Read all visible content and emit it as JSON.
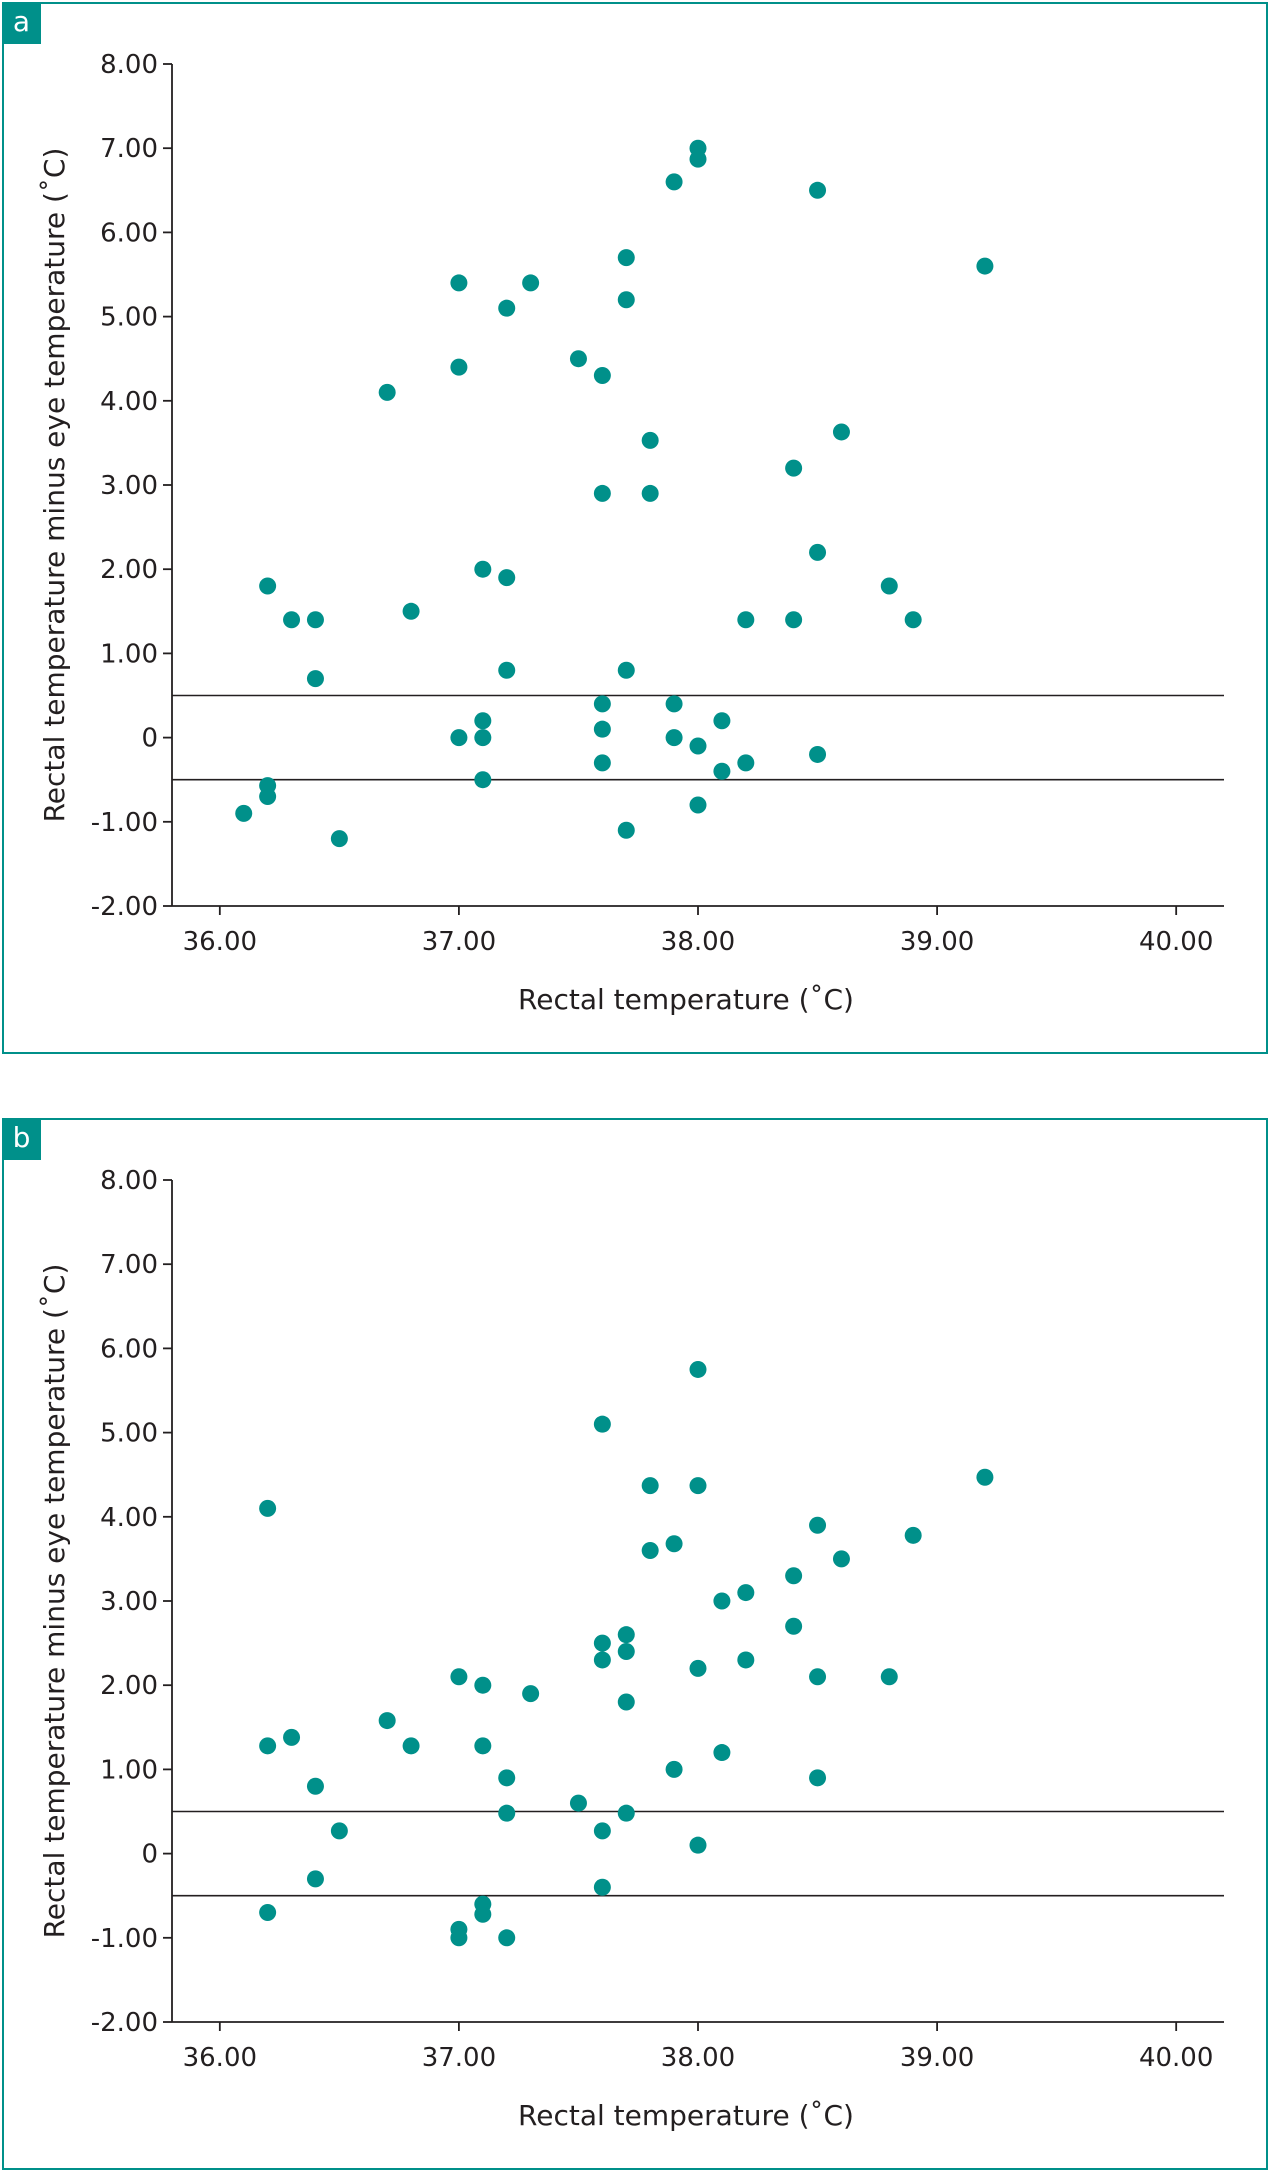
{
  "chart_data": [
    {
      "panel_label": "a",
      "type": "scatter",
      "xlabel": "Rectal temperature (˚C)",
      "ylabel": "Rectal temperature minus eye temperature (˚C)",
      "xlim": [
        35.8,
        40.2
      ],
      "ylim": [
        -2.0,
        8.0
      ],
      "x_ticks": [
        "36.00",
        "37.00",
        "38.00",
        "39.00",
        "40.00"
      ],
      "y_ticks": [
        "8.00",
        "7.00",
        "6.00",
        "5.00",
        "4.00",
        "3.00",
        "2.00",
        "1.00",
        "0",
        "-1.00",
        "-2.00"
      ],
      "reference_lines": [
        0.5,
        -0.5
      ],
      "color": "#00908a",
      "points": [
        [
          36.1,
          -0.9
        ],
        [
          36.2,
          1.8
        ],
        [
          36.2,
          -0.57
        ],
        [
          36.2,
          -0.7
        ],
        [
          36.3,
          1.4
        ],
        [
          36.4,
          1.4
        ],
        [
          36.4,
          0.7
        ],
        [
          36.5,
          -1.2
        ],
        [
          36.7,
          4.1
        ],
        [
          36.8,
          1.5
        ],
        [
          37.0,
          5.4
        ],
        [
          37.0,
          4.4
        ],
        [
          37.0,
          0.0
        ],
        [
          37.1,
          2.0
        ],
        [
          37.1,
          0.2
        ],
        [
          37.1,
          0.0
        ],
        [
          37.1,
          -0.5
        ],
        [
          37.2,
          5.1
        ],
        [
          37.2,
          1.9
        ],
        [
          37.2,
          0.8
        ],
        [
          37.3,
          5.4
        ],
        [
          37.5,
          4.5
        ],
        [
          37.6,
          4.3
        ],
        [
          37.6,
          2.9
        ],
        [
          37.6,
          0.4
        ],
        [
          37.6,
          0.1
        ],
        [
          37.6,
          -0.3
        ],
        [
          37.7,
          5.7
        ],
        [
          37.7,
          5.2
        ],
        [
          37.7,
          0.8
        ],
        [
          37.7,
          -1.1
        ],
        [
          37.8,
          3.53
        ],
        [
          37.8,
          2.9
        ],
        [
          37.9,
          6.6
        ],
        [
          37.9,
          0.4
        ],
        [
          37.9,
          0.0
        ],
        [
          38.0,
          7.0
        ],
        [
          38.0,
          6.87
        ],
        [
          38.0,
          -0.1
        ],
        [
          38.0,
          -0.8
        ],
        [
          38.1,
          0.2
        ],
        [
          38.1,
          -0.4
        ],
        [
          38.2,
          1.4
        ],
        [
          38.2,
          -0.3
        ],
        [
          38.4,
          3.2
        ],
        [
          38.4,
          1.4
        ],
        [
          38.5,
          6.5
        ],
        [
          38.5,
          2.2
        ],
        [
          38.5,
          -0.2
        ],
        [
          38.6,
          3.63
        ],
        [
          38.8,
          1.8
        ],
        [
          38.9,
          1.4
        ],
        [
          39.2,
          5.6
        ]
      ]
    },
    {
      "panel_label": "b",
      "type": "scatter",
      "xlabel": "Rectal temperature (˚C)",
      "ylabel": "Rectal temperature minus eye temperature (˚C)",
      "xlim": [
        35.8,
        40.2
      ],
      "ylim": [
        -2.0,
        8.0
      ],
      "x_ticks": [
        "36.00",
        "37.00",
        "38.00",
        "39.00",
        "40.00"
      ],
      "y_ticks": [
        "8.00",
        "7.00",
        "6.00",
        "5.00",
        "4.00",
        "3.00",
        "2.00",
        "1.00",
        "0",
        "-1.00",
        "-2.00"
      ],
      "reference_lines": [
        0.5,
        -0.5
      ],
      "color": "#00908a",
      "points": [
        [
          36.2,
          4.1
        ],
        [
          36.2,
          1.28
        ],
        [
          36.2,
          -0.7
        ],
        [
          36.3,
          1.38
        ],
        [
          36.4,
          0.8
        ],
        [
          36.4,
          -0.3
        ],
        [
          36.5,
          0.27
        ],
        [
          36.7,
          1.58
        ],
        [
          36.8,
          1.28
        ],
        [
          37.0,
          2.1
        ],
        [
          37.0,
          -0.9
        ],
        [
          37.0,
          -1.0
        ],
        [
          37.1,
          2.0
        ],
        [
          37.1,
          1.28
        ],
        [
          37.1,
          -0.6
        ],
        [
          37.1,
          -0.72
        ],
        [
          37.2,
          0.9
        ],
        [
          37.2,
          0.48
        ],
        [
          37.2,
          -1.0
        ],
        [
          37.3,
          1.9
        ],
        [
          37.5,
          0.6
        ],
        [
          37.6,
          5.1
        ],
        [
          37.6,
          2.5
        ],
        [
          37.6,
          2.3
        ],
        [
          37.6,
          0.27
        ],
        [
          37.6,
          -0.4
        ],
        [
          37.7,
          2.6
        ],
        [
          37.7,
          2.4
        ],
        [
          37.7,
          1.8
        ],
        [
          37.7,
          0.48
        ],
        [
          37.8,
          4.37
        ],
        [
          37.8,
          3.6
        ],
        [
          37.9,
          3.68
        ],
        [
          37.9,
          1.0
        ],
        [
          38.0,
          5.75
        ],
        [
          38.0,
          4.37
        ],
        [
          38.0,
          2.2
        ],
        [
          38.0,
          0.1
        ],
        [
          38.1,
          3.0
        ],
        [
          38.1,
          1.2
        ],
        [
          38.2,
          3.1
        ],
        [
          38.2,
          2.3
        ],
        [
          38.4,
          3.3
        ],
        [
          38.4,
          2.7
        ],
        [
          38.5,
          3.9
        ],
        [
          38.5,
          2.1
        ],
        [
          38.5,
          0.9
        ],
        [
          38.6,
          3.5
        ],
        [
          38.8,
          2.1
        ],
        [
          38.9,
          3.78
        ],
        [
          39.2,
          4.47
        ]
      ]
    }
  ]
}
